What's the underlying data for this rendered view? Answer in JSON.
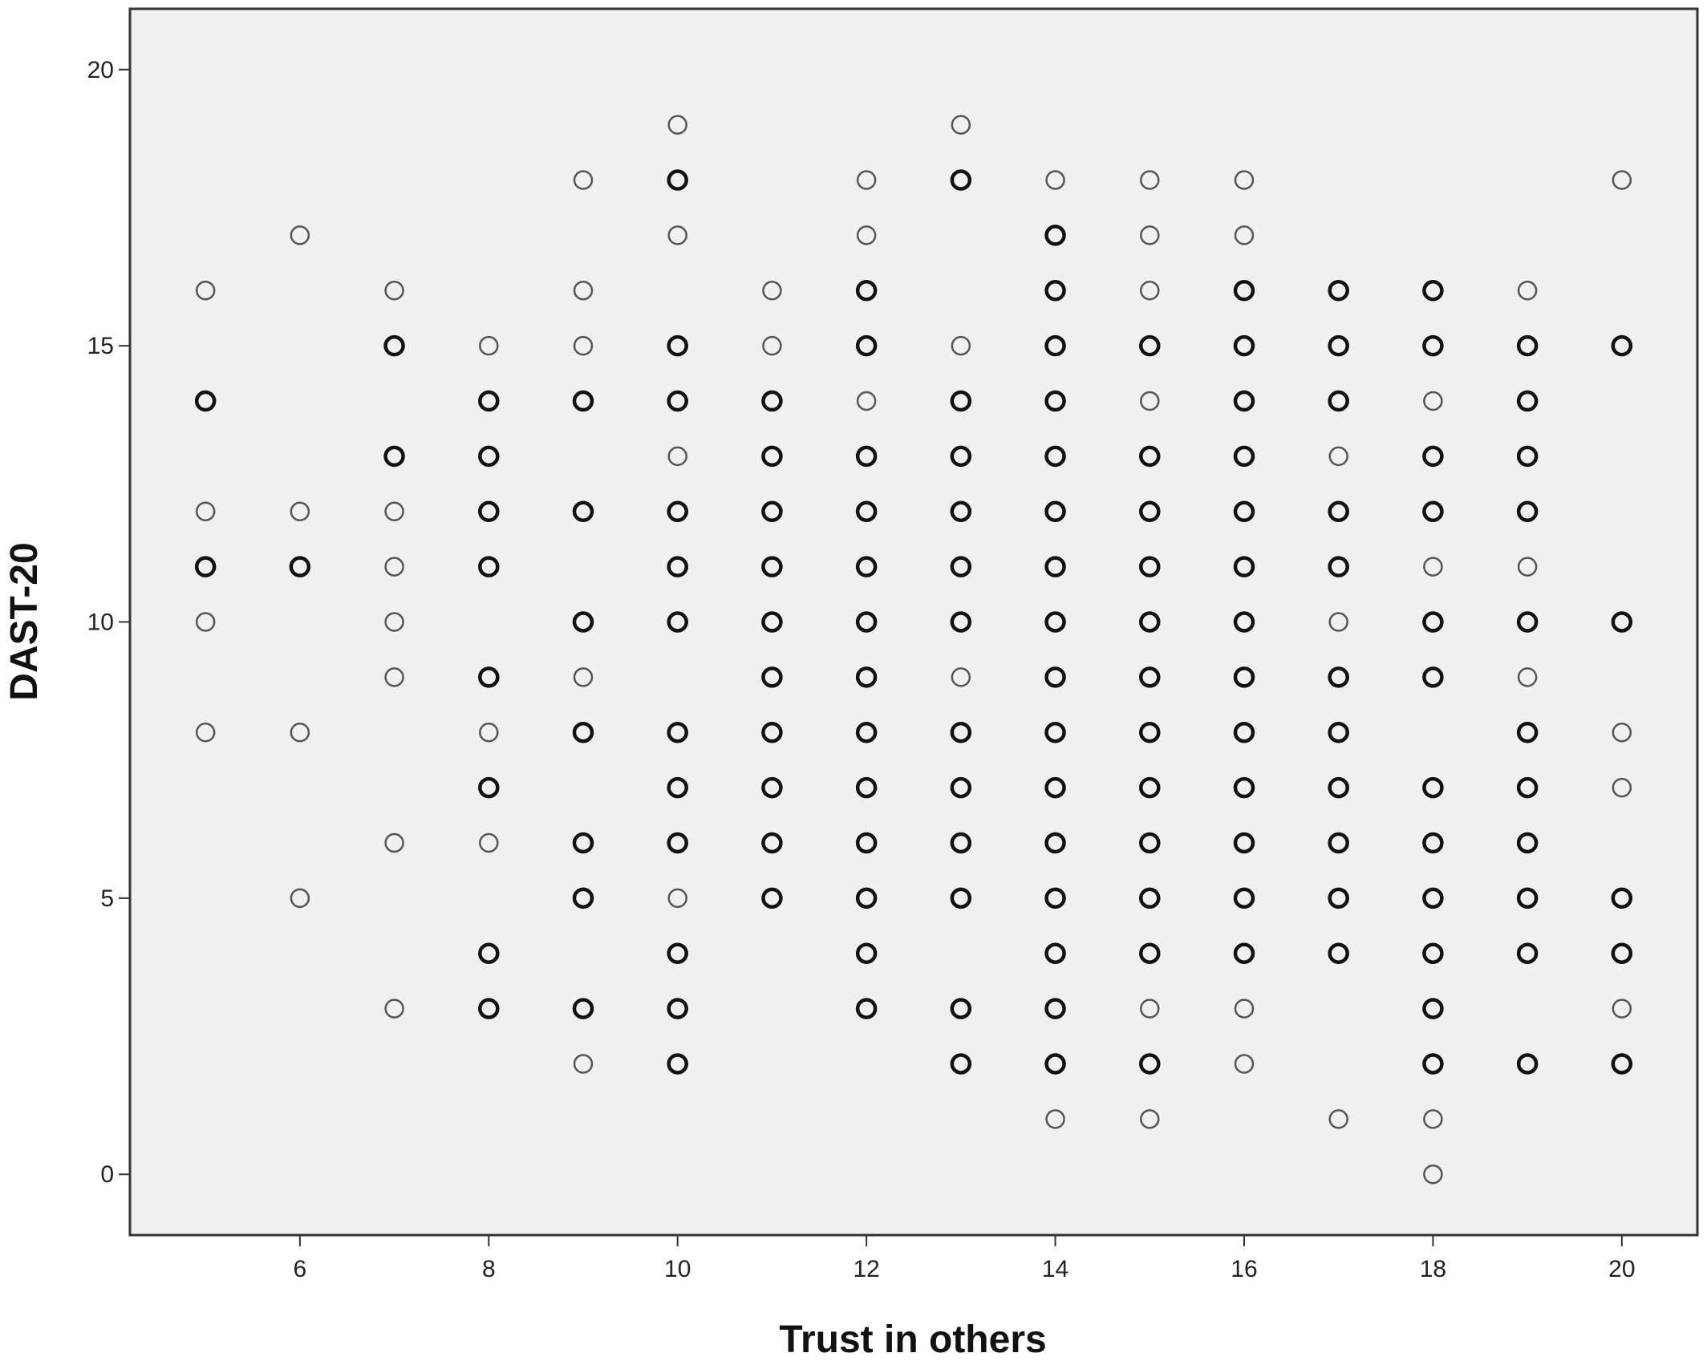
{
  "chart_data": {
    "type": "scatter",
    "title": "",
    "xlabel": "Trust in others",
    "ylabel": "DAST-20",
    "xlim": [
      4.2,
      20.8
    ],
    "ylim": [
      -1.1,
      21.1
    ],
    "xticks": [
      6,
      8,
      10,
      12,
      14,
      16,
      18,
      20
    ],
    "yticks": [
      0,
      5,
      10,
      15,
      20
    ],
    "xtick_labels": [
      "6",
      "8",
      "10",
      "12",
      "14",
      "16",
      "18",
      "20"
    ],
    "ytick_labels": [
      "0",
      "5",
      "10",
      "15",
      "20"
    ],
    "grid": false,
    "background_color": "#f0f0f0",
    "marker": "open-circle",
    "points": [
      {
        "x": 5,
        "y": 16,
        "bold": false
      },
      {
        "x": 5,
        "y": 14,
        "bold": true
      },
      {
        "x": 5,
        "y": 12,
        "bold": false
      },
      {
        "x": 5,
        "y": 11,
        "bold": true
      },
      {
        "x": 5,
        "y": 10,
        "bold": false
      },
      {
        "x": 5,
        "y": 8,
        "bold": false
      },
      {
        "x": 6,
        "y": 17,
        "bold": false
      },
      {
        "x": 6,
        "y": 12,
        "bold": false
      },
      {
        "x": 6,
        "y": 11,
        "bold": true
      },
      {
        "x": 6,
        "y": 8,
        "bold": false
      },
      {
        "x": 6,
        "y": 5,
        "bold": false
      },
      {
        "x": 7,
        "y": 16,
        "bold": false
      },
      {
        "x": 7,
        "y": 15,
        "bold": true
      },
      {
        "x": 7,
        "y": 13,
        "bold": true
      },
      {
        "x": 7,
        "y": 12,
        "bold": false
      },
      {
        "x": 7,
        "y": 11,
        "bold": false
      },
      {
        "x": 7,
        "y": 10,
        "bold": false
      },
      {
        "x": 7,
        "y": 9,
        "bold": false
      },
      {
        "x": 7,
        "y": 6,
        "bold": false
      },
      {
        "x": 7,
        "y": 3,
        "bold": false
      },
      {
        "x": 8,
        "y": 15,
        "bold": false
      },
      {
        "x": 8,
        "y": 14,
        "bold": true
      },
      {
        "x": 8,
        "y": 13,
        "bold": true
      },
      {
        "x": 8,
        "y": 12,
        "bold": true
      },
      {
        "x": 8,
        "y": 11,
        "bold": true
      },
      {
        "x": 8,
        "y": 9,
        "bold": true
      },
      {
        "x": 8,
        "y": 8,
        "bold": false
      },
      {
        "x": 8,
        "y": 7,
        "bold": true
      },
      {
        "x": 8,
        "y": 6,
        "bold": false
      },
      {
        "x": 8,
        "y": 4,
        "bold": true
      },
      {
        "x": 8,
        "y": 3,
        "bold": true
      },
      {
        "x": 9,
        "y": 18,
        "bold": false
      },
      {
        "x": 9,
        "y": 16,
        "bold": false
      },
      {
        "x": 9,
        "y": 15,
        "bold": false
      },
      {
        "x": 9,
        "y": 14,
        "bold": true
      },
      {
        "x": 9,
        "y": 12,
        "bold": true
      },
      {
        "x": 9,
        "y": 10,
        "bold": true
      },
      {
        "x": 9,
        "y": 9,
        "bold": false
      },
      {
        "x": 9,
        "y": 8,
        "bold": true
      },
      {
        "x": 9,
        "y": 6,
        "bold": true
      },
      {
        "x": 9,
        "y": 5,
        "bold": true
      },
      {
        "x": 9,
        "y": 3,
        "bold": true
      },
      {
        "x": 9,
        "y": 2,
        "bold": false
      },
      {
        "x": 10,
        "y": 19,
        "bold": false
      },
      {
        "x": 10,
        "y": 18,
        "bold": true
      },
      {
        "x": 10,
        "y": 17,
        "bold": false
      },
      {
        "x": 10,
        "y": 15,
        "bold": true
      },
      {
        "x": 10,
        "y": 14,
        "bold": true
      },
      {
        "x": 10,
        "y": 13,
        "bold": false
      },
      {
        "x": 10,
        "y": 12,
        "bold": true
      },
      {
        "x": 10,
        "y": 11,
        "bold": true
      },
      {
        "x": 10,
        "y": 10,
        "bold": true
      },
      {
        "x": 10,
        "y": 8,
        "bold": true
      },
      {
        "x": 10,
        "y": 7,
        "bold": true
      },
      {
        "x": 10,
        "y": 6,
        "bold": true
      },
      {
        "x": 10,
        "y": 5,
        "bold": false
      },
      {
        "x": 10,
        "y": 4,
        "bold": true
      },
      {
        "x": 10,
        "y": 3,
        "bold": true
      },
      {
        "x": 10,
        "y": 2,
        "bold": true
      },
      {
        "x": 11,
        "y": 16,
        "bold": false
      },
      {
        "x": 11,
        "y": 15,
        "bold": false
      },
      {
        "x": 11,
        "y": 14,
        "bold": true
      },
      {
        "x": 11,
        "y": 13,
        "bold": true
      },
      {
        "x": 11,
        "y": 12,
        "bold": true
      },
      {
        "x": 11,
        "y": 11,
        "bold": true
      },
      {
        "x": 11,
        "y": 10,
        "bold": true
      },
      {
        "x": 11,
        "y": 9,
        "bold": true
      },
      {
        "x": 11,
        "y": 8,
        "bold": true
      },
      {
        "x": 11,
        "y": 7,
        "bold": true
      },
      {
        "x": 11,
        "y": 6,
        "bold": true
      },
      {
        "x": 11,
        "y": 5,
        "bold": true
      },
      {
        "x": 12,
        "y": 18,
        "bold": false
      },
      {
        "x": 12,
        "y": 17,
        "bold": false
      },
      {
        "x": 12,
        "y": 16,
        "bold": true
      },
      {
        "x": 12,
        "y": 15,
        "bold": true
      },
      {
        "x": 12,
        "y": 14,
        "bold": false
      },
      {
        "x": 12,
        "y": 13,
        "bold": true
      },
      {
        "x": 12,
        "y": 12,
        "bold": true
      },
      {
        "x": 12,
        "y": 11,
        "bold": true
      },
      {
        "x": 12,
        "y": 10,
        "bold": true
      },
      {
        "x": 12,
        "y": 9,
        "bold": true
      },
      {
        "x": 12,
        "y": 8,
        "bold": true
      },
      {
        "x": 12,
        "y": 7,
        "bold": true
      },
      {
        "x": 12,
        "y": 6,
        "bold": true
      },
      {
        "x": 12,
        "y": 5,
        "bold": true
      },
      {
        "x": 12,
        "y": 4,
        "bold": true
      },
      {
        "x": 12,
        "y": 3,
        "bold": true
      },
      {
        "x": 13,
        "y": 19,
        "bold": false
      },
      {
        "x": 13,
        "y": 18,
        "bold": true
      },
      {
        "x": 13,
        "y": 15,
        "bold": false
      },
      {
        "x": 13,
        "y": 14,
        "bold": true
      },
      {
        "x": 13,
        "y": 13,
        "bold": true
      },
      {
        "x": 13,
        "y": 12,
        "bold": true
      },
      {
        "x": 13,
        "y": 11,
        "bold": true
      },
      {
        "x": 13,
        "y": 10,
        "bold": true
      },
      {
        "x": 13,
        "y": 9,
        "bold": false
      },
      {
        "x": 13,
        "y": 8,
        "bold": true
      },
      {
        "x": 13,
        "y": 7,
        "bold": true
      },
      {
        "x": 13,
        "y": 6,
        "bold": true
      },
      {
        "x": 13,
        "y": 5,
        "bold": true
      },
      {
        "x": 13,
        "y": 3,
        "bold": true
      },
      {
        "x": 13,
        "y": 2,
        "bold": true
      },
      {
        "x": 14,
        "y": 18,
        "bold": false
      },
      {
        "x": 14,
        "y": 17,
        "bold": true
      },
      {
        "x": 14,
        "y": 16,
        "bold": true
      },
      {
        "x": 14,
        "y": 15,
        "bold": true
      },
      {
        "x": 14,
        "y": 14,
        "bold": true
      },
      {
        "x": 14,
        "y": 13,
        "bold": true
      },
      {
        "x": 14,
        "y": 12,
        "bold": true
      },
      {
        "x": 14,
        "y": 11,
        "bold": true
      },
      {
        "x": 14,
        "y": 10,
        "bold": true
      },
      {
        "x": 14,
        "y": 9,
        "bold": true
      },
      {
        "x": 14,
        "y": 8,
        "bold": true
      },
      {
        "x": 14,
        "y": 7,
        "bold": true
      },
      {
        "x": 14,
        "y": 6,
        "bold": true
      },
      {
        "x": 14,
        "y": 5,
        "bold": true
      },
      {
        "x": 14,
        "y": 4,
        "bold": true
      },
      {
        "x": 14,
        "y": 3,
        "bold": true
      },
      {
        "x": 14,
        "y": 2,
        "bold": true
      },
      {
        "x": 14,
        "y": 1,
        "bold": false
      },
      {
        "x": 15,
        "y": 18,
        "bold": false
      },
      {
        "x": 15,
        "y": 17,
        "bold": false
      },
      {
        "x": 15,
        "y": 16,
        "bold": false
      },
      {
        "x": 15,
        "y": 15,
        "bold": true
      },
      {
        "x": 15,
        "y": 14,
        "bold": false
      },
      {
        "x": 15,
        "y": 13,
        "bold": true
      },
      {
        "x": 15,
        "y": 12,
        "bold": true
      },
      {
        "x": 15,
        "y": 11,
        "bold": true
      },
      {
        "x": 15,
        "y": 10,
        "bold": true
      },
      {
        "x": 15,
        "y": 9,
        "bold": true
      },
      {
        "x": 15,
        "y": 8,
        "bold": true
      },
      {
        "x": 15,
        "y": 7,
        "bold": true
      },
      {
        "x": 15,
        "y": 6,
        "bold": true
      },
      {
        "x": 15,
        "y": 5,
        "bold": true
      },
      {
        "x": 15,
        "y": 4,
        "bold": true
      },
      {
        "x": 15,
        "y": 3,
        "bold": false
      },
      {
        "x": 15,
        "y": 2,
        "bold": true
      },
      {
        "x": 15,
        "y": 1,
        "bold": false
      },
      {
        "x": 16,
        "y": 18,
        "bold": false
      },
      {
        "x": 16,
        "y": 17,
        "bold": false
      },
      {
        "x": 16,
        "y": 16,
        "bold": true
      },
      {
        "x": 16,
        "y": 15,
        "bold": true
      },
      {
        "x": 16,
        "y": 14,
        "bold": true
      },
      {
        "x": 16,
        "y": 13,
        "bold": true
      },
      {
        "x": 16,
        "y": 12,
        "bold": true
      },
      {
        "x": 16,
        "y": 11,
        "bold": true
      },
      {
        "x": 16,
        "y": 10,
        "bold": true
      },
      {
        "x": 16,
        "y": 9,
        "bold": true
      },
      {
        "x": 16,
        "y": 8,
        "bold": true
      },
      {
        "x": 16,
        "y": 7,
        "bold": true
      },
      {
        "x": 16,
        "y": 6,
        "bold": true
      },
      {
        "x": 16,
        "y": 5,
        "bold": true
      },
      {
        "x": 16,
        "y": 4,
        "bold": true
      },
      {
        "x": 16,
        "y": 3,
        "bold": false
      },
      {
        "x": 16,
        "y": 2,
        "bold": false
      },
      {
        "x": 17,
        "y": 16,
        "bold": true
      },
      {
        "x": 17,
        "y": 15,
        "bold": true
      },
      {
        "x": 17,
        "y": 14,
        "bold": true
      },
      {
        "x": 17,
        "y": 13,
        "bold": false
      },
      {
        "x": 17,
        "y": 12,
        "bold": true
      },
      {
        "x": 17,
        "y": 11,
        "bold": true
      },
      {
        "x": 17,
        "y": 10,
        "bold": false
      },
      {
        "x": 17,
        "y": 9,
        "bold": true
      },
      {
        "x": 17,
        "y": 8,
        "bold": true
      },
      {
        "x": 17,
        "y": 7,
        "bold": true
      },
      {
        "x": 17,
        "y": 6,
        "bold": true
      },
      {
        "x": 17,
        "y": 5,
        "bold": true
      },
      {
        "x": 17,
        "y": 4,
        "bold": true
      },
      {
        "x": 17,
        "y": 1,
        "bold": false
      },
      {
        "x": 18,
        "y": 16,
        "bold": true
      },
      {
        "x": 18,
        "y": 15,
        "bold": true
      },
      {
        "x": 18,
        "y": 14,
        "bold": false
      },
      {
        "x": 18,
        "y": 13,
        "bold": true
      },
      {
        "x": 18,
        "y": 12,
        "bold": true
      },
      {
        "x": 18,
        "y": 11,
        "bold": false
      },
      {
        "x": 18,
        "y": 10,
        "bold": true
      },
      {
        "x": 18,
        "y": 9,
        "bold": true
      },
      {
        "x": 18,
        "y": 7,
        "bold": true
      },
      {
        "x": 18,
        "y": 6,
        "bold": true
      },
      {
        "x": 18,
        "y": 5,
        "bold": true
      },
      {
        "x": 18,
        "y": 4,
        "bold": true
      },
      {
        "x": 18,
        "y": 3,
        "bold": true
      },
      {
        "x": 18,
        "y": 2,
        "bold": true
      },
      {
        "x": 18,
        "y": 1,
        "bold": false
      },
      {
        "x": 18,
        "y": 0,
        "bold": false
      },
      {
        "x": 19,
        "y": 16,
        "bold": false
      },
      {
        "x": 19,
        "y": 15,
        "bold": true
      },
      {
        "x": 19,
        "y": 14,
        "bold": true
      },
      {
        "x": 19,
        "y": 13,
        "bold": true
      },
      {
        "x": 19,
        "y": 12,
        "bold": true
      },
      {
        "x": 19,
        "y": 11,
        "bold": false
      },
      {
        "x": 19,
        "y": 10,
        "bold": true
      },
      {
        "x": 19,
        "y": 9,
        "bold": false
      },
      {
        "x": 19,
        "y": 8,
        "bold": true
      },
      {
        "x": 19,
        "y": 7,
        "bold": true
      },
      {
        "x": 19,
        "y": 6,
        "bold": true
      },
      {
        "x": 19,
        "y": 5,
        "bold": true
      },
      {
        "x": 19,
        "y": 4,
        "bold": true
      },
      {
        "x": 19,
        "y": 2,
        "bold": true
      },
      {
        "x": 20,
        "y": 18,
        "bold": false
      },
      {
        "x": 20,
        "y": 15,
        "bold": true
      },
      {
        "x": 20,
        "y": 10,
        "bold": true
      },
      {
        "x": 20,
        "y": 8,
        "bold": false
      },
      {
        "x": 20,
        "y": 7,
        "bold": false
      },
      {
        "x": 20,
        "y": 5,
        "bold": true
      },
      {
        "x": 20,
        "y": 4,
        "bold": true
      },
      {
        "x": 20,
        "y": 3,
        "bold": false
      },
      {
        "x": 20,
        "y": 2,
        "bold": true
      }
    ]
  }
}
